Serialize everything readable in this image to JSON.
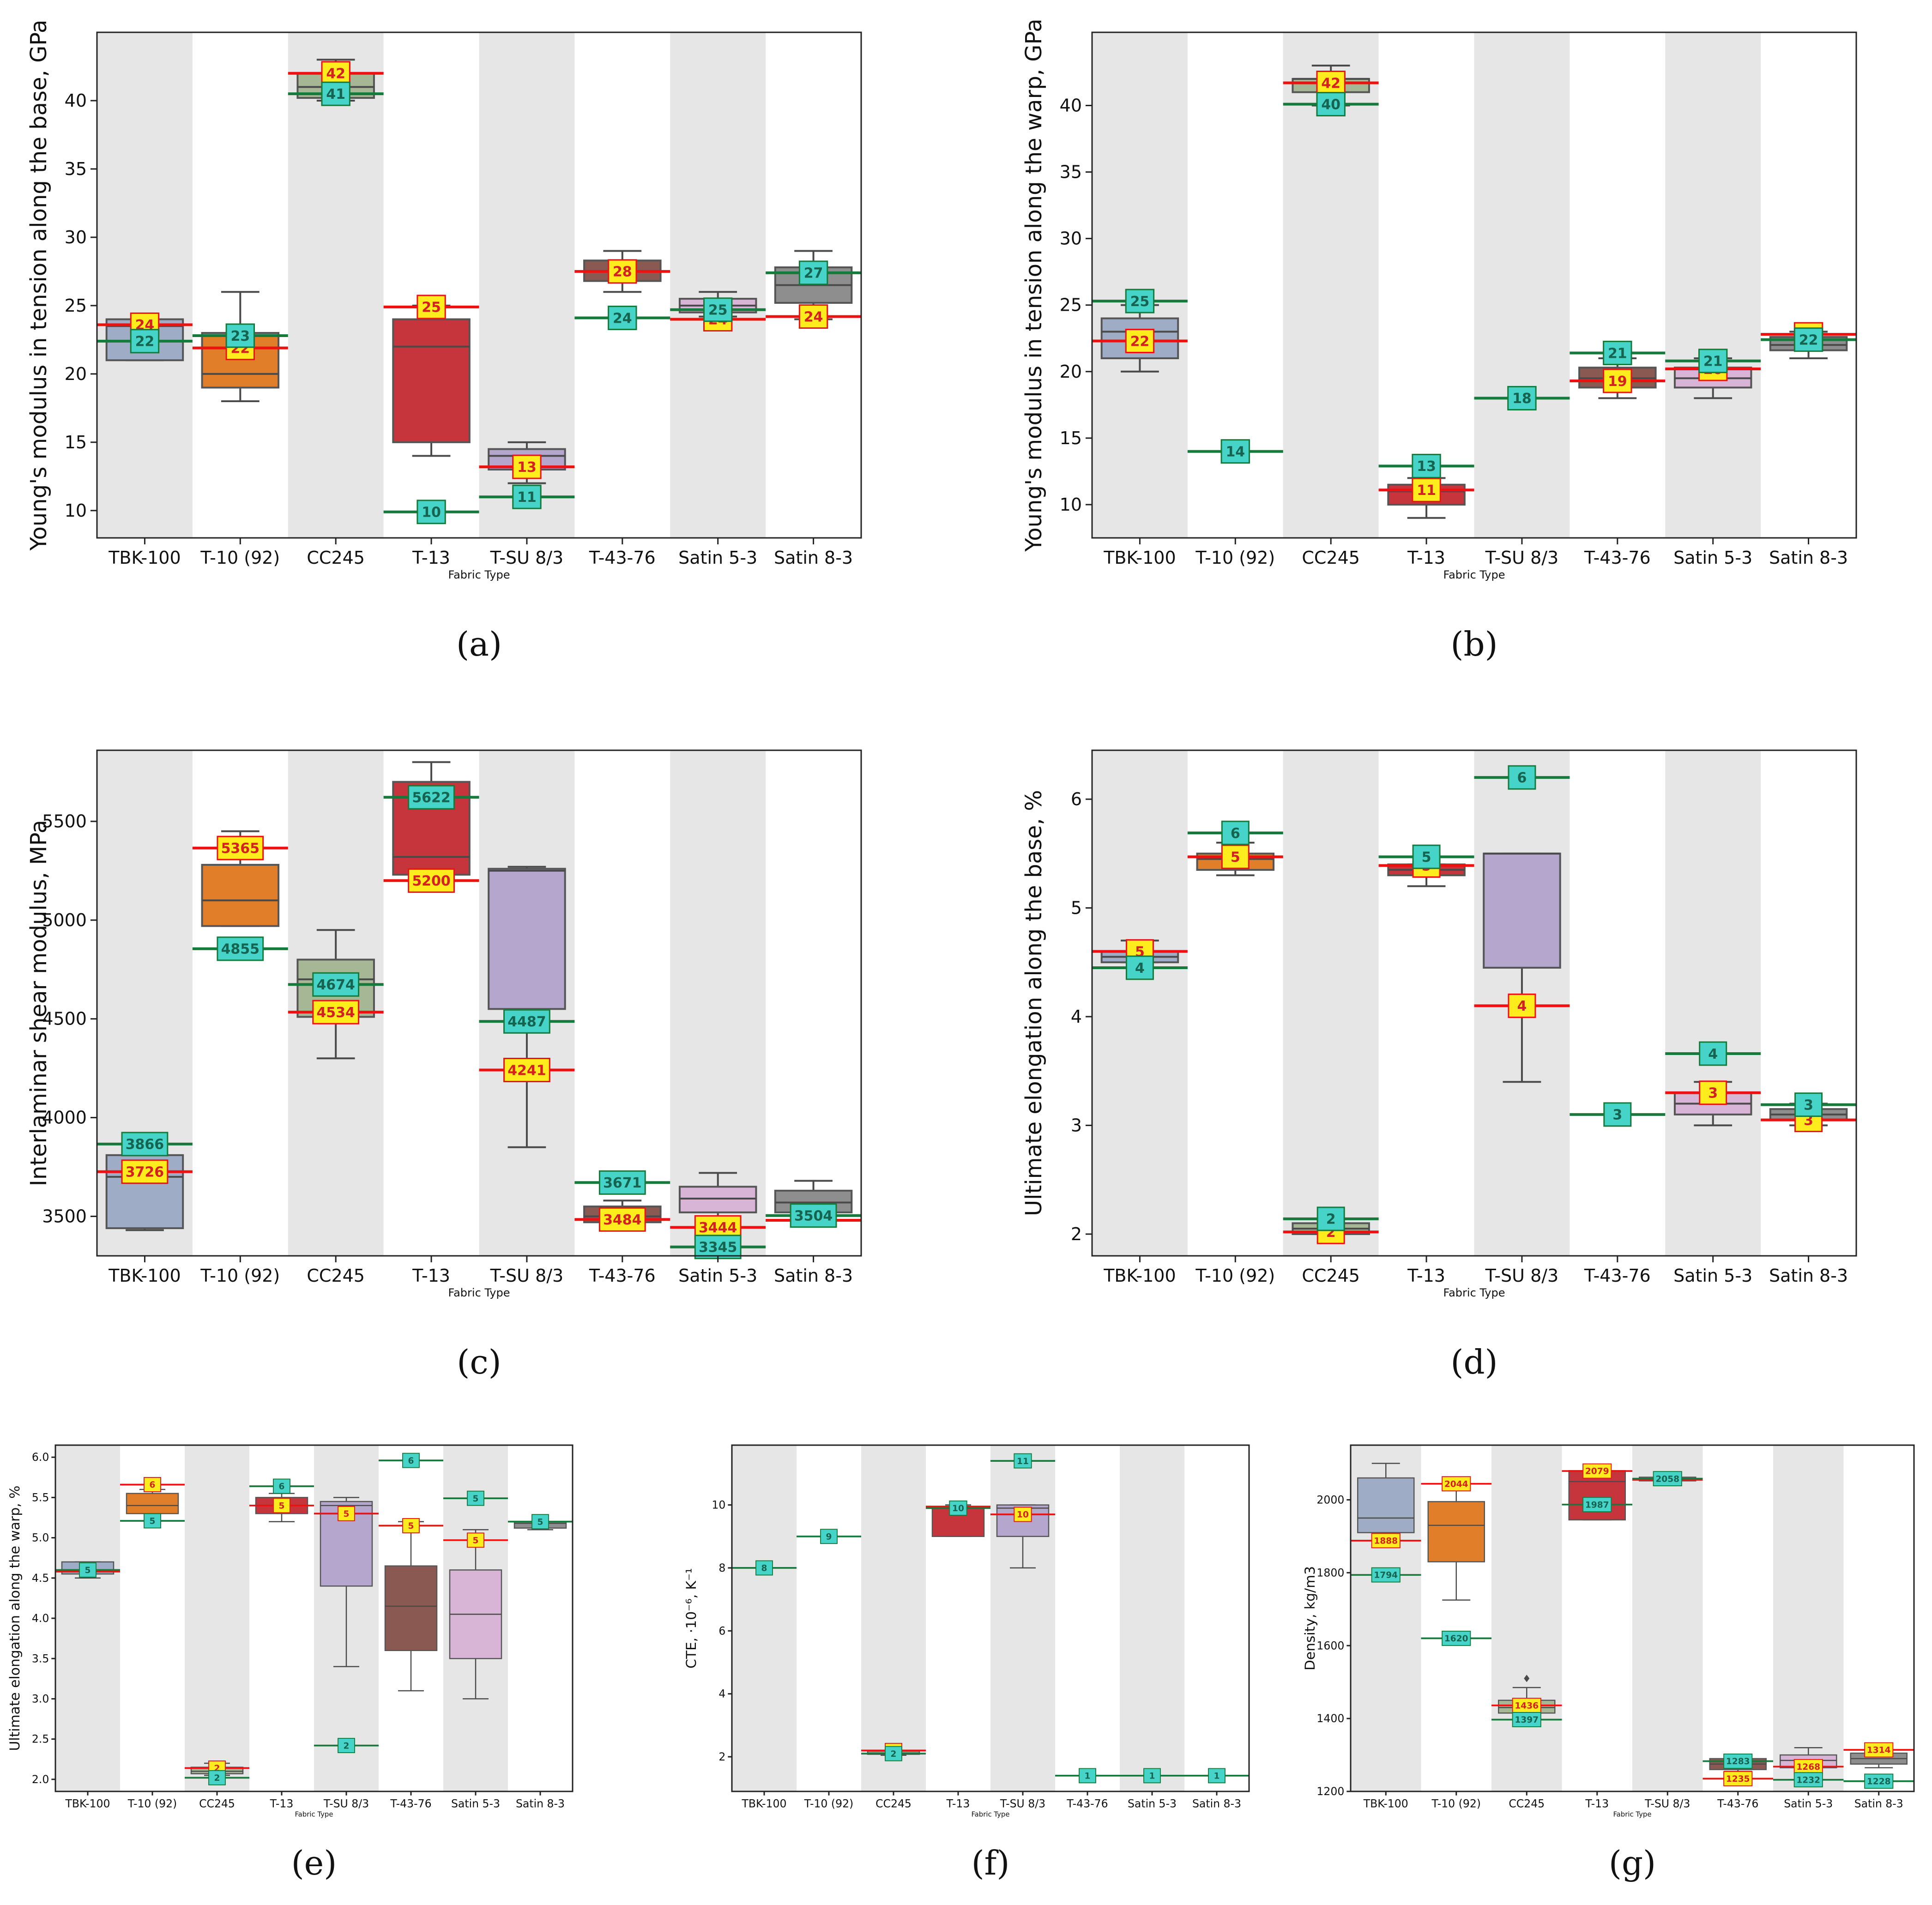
{
  "colors": {
    "band": "#e6e6e6",
    "red_line": "#ee1111",
    "green_line": "#157a3c",
    "yellow_label": "#ffec1c",
    "cyan_label": "#46d3c8",
    "TBK-100": "#9eacc6",
    "T-10 (92)": "#e07e2a",
    "CC245": "#a6b795",
    "T-13": "#c6343c",
    "T-SU 8/3": "#b4a6cd",
    "T-43-76": "#8a5a52",
    "Satin 5-3": "#d8b4d6",
    "Satin 8-3": "#8e8e8e"
  },
  "chart_data": [
    {
      "panel": "(a)",
      "type": "box",
      "categories": [
        "TBK-100",
        "T-10 (92)",
        "CC245",
        "T-13",
        "T-SU 8/3",
        "T-43-76",
        "Satin 5-3",
        "Satin 8-3"
      ],
      "ylabel": "Young's modulus in tension along the base, GPa",
      "xlabel": "Fabric Type",
      "ylim": [
        8,
        45
      ],
      "yticks": [
        10,
        15,
        20,
        25,
        30,
        35,
        40
      ],
      "ytick_labels": [
        "10",
        "15",
        "20",
        "25",
        "30",
        "35",
        "40"
      ],
      "boxes": [
        {
          "min": 21,
          "q1": 21,
          "med": 23.5,
          "q3": 24,
          "max": 24
        },
        {
          "min": 18,
          "q1": 19,
          "med": 20,
          "q3": 23,
          "max": 26
        },
        {
          "min": 40,
          "q1": 40.2,
          "med": 41,
          "q3": 42,
          "max": 43
        },
        {
          "min": 14,
          "q1": 15,
          "med": 22,
          "q3": 24,
          "max": 25
        },
        {
          "min": 12,
          "q1": 13,
          "med": 14,
          "q3": 14.5,
          "max": 15
        },
        {
          "min": 26,
          "q1": 26.8,
          "med": 27.5,
          "q3": 28.3,
          "max": 29
        },
        {
          "min": 24.2,
          "q1": 24.5,
          "med": 25,
          "q3": 25.5,
          "max": 26
        },
        {
          "min": 24,
          "q1": 25.2,
          "med": 26.5,
          "q3": 27.8,
          "max": 29
        }
      ],
      "red": {
        "values": [
          23.6,
          21.9,
          42,
          24.9,
          13.2,
          27.5,
          24,
          24.2
        ],
        "labels": [
          "24",
          "22",
          "42",
          "25",
          "13",
          "28",
          "24",
          "24"
        ]
      },
      "green": {
        "values": [
          22.4,
          22.8,
          40.5,
          9.9,
          11,
          24.1,
          24.7,
          27.4
        ],
        "labels": [
          "22",
          "23",
          "41",
          "10",
          "11",
          "24",
          "25",
          "27"
        ]
      }
    },
    {
      "panel": "(b)",
      "type": "box",
      "categories": [
        "TBK-100",
        "T-10 (92)",
        "CC245",
        "T-13",
        "T-SU 8/3",
        "T-43-76",
        "Satin 5-3",
        "Satin 8-3"
      ],
      "ylabel": "Young's modulus in tension along the warp, GPa",
      "xlabel": "Fabric Type",
      "ylim": [
        7.5,
        45.5
      ],
      "yticks": [
        10,
        15,
        20,
        25,
        30,
        35,
        40
      ],
      "ytick_labels": [
        "10",
        "15",
        "20",
        "25",
        "30",
        "35",
        "40"
      ],
      "boxes": [
        {
          "min": 20,
          "q1": 21,
          "med": 23,
          "q3": 24,
          "max": 25
        },
        null,
        {
          "min": 40,
          "q1": 41,
          "med": 42,
          "q3": 42,
          "max": 43
        },
        {
          "min": 9,
          "q1": 10,
          "med": 11,
          "q3": 11.5,
          "max": 12
        },
        null,
        {
          "min": 18,
          "q1": 18.8,
          "med": 19.5,
          "q3": 20.3,
          "max": 21
        },
        {
          "min": 18,
          "q1": 18.8,
          "med": 19.5,
          "q3": 20.3,
          "max": 21
        },
        {
          "min": 21,
          "q1": 21.6,
          "med": 22,
          "q3": 22.6,
          "max": 23
        }
      ],
      "red": {
        "values": [
          22.3,
          null,
          41.7,
          11.1,
          null,
          19.3,
          20.2,
          22.8
        ],
        "labels": [
          "22",
          "",
          "42",
          "11",
          "",
          "19",
          "20",
          "23"
        ]
      },
      "green": {
        "values": [
          25.3,
          14,
          40.1,
          12.9,
          18,
          21.4,
          20.8,
          22.4
        ],
        "labels": [
          "25",
          "14",
          "40",
          "13",
          "18",
          "21",
          "21",
          "22"
        ]
      }
    },
    {
      "panel": "(c)",
      "type": "box",
      "categories": [
        "TBK-100",
        "T-10 (92)",
        "CC245",
        "T-13",
        "T-SU 8/3",
        "T-43-76",
        "Satin 5-3",
        "Satin 8-3"
      ],
      "ylabel": "Interlaminar shear modulus, MPa",
      "xlabel": "Fabric Type",
      "ylim": [
        3300,
        5860
      ],
      "yticks": [
        3500,
        4000,
        4500,
        5000,
        5500
      ],
      "ytick_labels": [
        "3500",
        "4000",
        "4500",
        "5000",
        "5500"
      ],
      "boxes": [
        {
          "min": 3430,
          "q1": 3440,
          "med": 3700,
          "q3": 3810,
          "max": 3810
        },
        {
          "min": 4970,
          "q1": 4970,
          "med": 5100,
          "q3": 5280,
          "max": 5450
        },
        {
          "min": 4300,
          "q1": 4510,
          "med": 4700,
          "q3": 4800,
          "max": 4950
        },
        {
          "min": 5230,
          "q1": 5230,
          "med": 5320,
          "q3": 5700,
          "max": 5800
        },
        {
          "min": 3850,
          "q1": 4550,
          "med": 5250,
          "q3": 5260,
          "max": 5270
        },
        {
          "min": 3430,
          "q1": 3470,
          "med": 3500,
          "q3": 3550,
          "max": 3580
        },
        {
          "min": 3420,
          "q1": 3520,
          "med": 3590,
          "q3": 3650,
          "max": 3720
        },
        {
          "min": 3470,
          "q1": 3520,
          "med": 3570,
          "q3": 3630,
          "max": 3680
        }
      ],
      "red": {
        "values": [
          3726,
          5365,
          4534,
          5200,
          4241,
          3484,
          3444,
          3480
        ],
        "labels": [
          "3726",
          "5365",
          "4534",
          "5200",
          "4241",
          "3484",
          "3444",
          ""
        ]
      },
      "green": {
        "values": [
          3866,
          4855,
          4674,
          5622,
          4487,
          3671,
          3345,
          3504
        ],
        "labels": [
          "3866",
          "4855",
          "4674",
          "5622",
          "4487",
          "3671",
          "3345",
          "3504"
        ]
      }
    },
    {
      "panel": "(d)",
      "type": "box",
      "categories": [
        "TBK-100",
        "T-10 (92)",
        "CC245",
        "T-13",
        "T-SU 8/3",
        "T-43-76",
        "Satin 5-3",
        "Satin 8-3"
      ],
      "ylabel": "Ultimate elongation along the base, %",
      "xlabel": "Fabric Type",
      "ylim": [
        1.8,
        6.45
      ],
      "yticks": [
        2,
        3,
        4,
        5,
        6
      ],
      "ytick_labels": [
        "2",
        "3",
        "4",
        "5",
        "6"
      ],
      "boxes": [
        {
          "min": 4.5,
          "q1": 4.5,
          "med": 4.55,
          "q3": 4.6,
          "max": 4.7
        },
        {
          "min": 5.3,
          "q1": 5.35,
          "med": 5.45,
          "q3": 5.5,
          "max": 5.6
        },
        {
          "min": 2.0,
          "q1": 2.0,
          "med": 2.05,
          "q3": 2.1,
          "max": 2.1
        },
        {
          "min": 5.2,
          "q1": 5.3,
          "med": 5.35,
          "q3": 5.4,
          "max": 5.4
        },
        {
          "min": 3.4,
          "q1": 4.45,
          "med": 5.5,
          "q3": 5.5,
          "max": 5.5
        },
        null,
        {
          "min": 3.0,
          "q1": 3.1,
          "med": 3.2,
          "q3": 3.3,
          "max": 3.4
        },
        {
          "min": 3.0,
          "q1": 3.05,
          "med": 3.1,
          "q3": 3.15,
          "max": 3.2
        }
      ],
      "red": {
        "values": [
          4.6,
          5.47,
          2.02,
          5.39,
          4.1,
          null,
          3.3,
          3.05
        ],
        "labels": [
          "5",
          "5",
          "2",
          "5",
          "4",
          "",
          "3",
          "3"
        ]
      },
      "green": {
        "values": [
          4.45,
          5.69,
          2.14,
          5.47,
          6.2,
          3.1,
          3.66,
          3.19
        ],
        "labels": [
          "4",
          "6",
          "2",
          "5",
          "6",
          "3",
          "4",
          "3"
        ]
      }
    },
    {
      "panel": "(e)",
      "type": "box",
      "categories": [
        "TBK-100",
        "T-10 (92)",
        "CC245",
        "T-13",
        "T-SU 8/3",
        "T-43-76",
        "Satin 5-3",
        "Satin 8-3"
      ],
      "ylabel": "Ultimate elongation along the warp, %",
      "xlabel": "Fabric Type",
      "ylim": [
        1.85,
        6.15
      ],
      "yticks": [
        2.0,
        2.5,
        3.0,
        3.5,
        4.0,
        4.5,
        5.0,
        5.5,
        6.0
      ],
      "ytick_labels": [
        "2.0",
        "2.5",
        "3.0",
        "3.5",
        "4.0",
        "4.5",
        "5.0",
        "5.5",
        "6.0"
      ],
      "boxes": [
        {
          "min": 4.5,
          "q1": 4.55,
          "med": 4.6,
          "q3": 4.7,
          "max": 4.7
        },
        {
          "min": 5.3,
          "q1": 5.3,
          "med": 5.4,
          "q3": 5.55,
          "max": 5.6
        },
        {
          "min": 2.05,
          "q1": 2.07,
          "med": 2.1,
          "q3": 2.15,
          "max": 2.2
        },
        {
          "min": 5.2,
          "q1": 5.3,
          "med": 5.4,
          "q3": 5.5,
          "max": 5.55
        },
        {
          "min": 3.4,
          "q1": 4.4,
          "med": 5.4,
          "q3": 5.45,
          "max": 5.5
        },
        {
          "min": 3.1,
          "q1": 3.6,
          "med": 4.15,
          "q3": 4.65,
          "max": 5.2
        },
        {
          "min": 3.0,
          "q1": 3.5,
          "med": 4.05,
          "q3": 4.6,
          "max": 5.1
        },
        {
          "min": 5.1,
          "q1": 5.12,
          "med": 5.18,
          "q3": 5.2,
          "max": 5.2
        }
      ],
      "red": {
        "values": [
          4.58,
          5.66,
          2.14,
          5.4,
          5.3,
          5.15,
          4.97,
          5.2
        ],
        "labels": [
          "",
          "6",
          "2",
          "5",
          "5",
          "5",
          "5",
          ""
        ]
      },
      "green": {
        "values": [
          4.6,
          5.21,
          2.02,
          5.64,
          2.42,
          5.96,
          5.49,
          5.2
        ],
        "labels": [
          "5",
          "5",
          "2",
          "6",
          "2",
          "6",
          "5",
          "5"
        ]
      }
    },
    {
      "panel": "(f)",
      "type": "box",
      "categories": [
        "TBK-100",
        "T-10 (92)",
        "CC245",
        "T-13",
        "T-SU 8/3",
        "T-43-76",
        "Satin 5-3",
        "Satin 8-3"
      ],
      "ylabel": "CTE, ·10⁻⁶, K⁻¹",
      "xlabel": "Fabric Type",
      "ylim": [
        0.9,
        11.9
      ],
      "yticks": [
        2,
        4,
        6,
        8,
        10
      ],
      "ytick_labels": [
        "2",
        "4",
        "6",
        "8",
        "10"
      ],
      "boxes": [
        null,
        null,
        {
          "min": 2.05,
          "q1": 2.08,
          "med": 2.12,
          "q3": 2.18,
          "max": 2.2
        },
        {
          "min": 9.0,
          "q1": 9.0,
          "med": 9.9,
          "q3": 9.95,
          "max": 10
        },
        {
          "min": 8.0,
          "q1": 9.0,
          "med": 9.9,
          "q3": 10,
          "max": 10
        },
        null,
        null,
        null
      ],
      "red": {
        "values": [
          null,
          null,
          2.2,
          9.95,
          9.7,
          null,
          null,
          null
        ],
        "labels": [
          "",
          "",
          "2",
          "",
          "10",
          "",
          "",
          ""
        ]
      },
      "green": {
        "values": [
          8.0,
          9.0,
          2.1,
          9.9,
          11.4,
          1.4,
          1.4,
          1.4
        ],
        "labels": [
          "8",
          "9",
          "2",
          "10",
          "11",
          "1",
          "1",
          "1"
        ]
      }
    },
    {
      "panel": "(g)",
      "type": "box",
      "categories": [
        "TBK-100",
        "T-10 (92)",
        "CC245",
        "T-13",
        "T-SU 8/3",
        "T-43-76",
        "Satin 5-3",
        "Satin 8-3"
      ],
      "ylabel": "Density, kg/m3",
      "xlabel": "Fabric Type",
      "ylim": [
        1200,
        2150
      ],
      "yticks": [
        1200,
        1400,
        1600,
        1800,
        2000
      ],
      "ytick_labels": [
        "1200",
        "1400",
        "1600",
        "1800",
        "2000"
      ],
      "boxes": [
        {
          "min": 1900,
          "q1": 1910,
          "med": 1950,
          "q3": 2060,
          "max": 2100
        },
        {
          "min": 1725,
          "q1": 1830,
          "med": 1930,
          "q3": 1995,
          "max": 2060
        },
        {
          "min": 1400,
          "q1": 1415,
          "med": 1430,
          "q3": 1450,
          "max": 1485,
          "outlier": 1510
        },
        {
          "min": 1945,
          "q1": 1945,
          "med": 2050,
          "q3": 2080,
          "max": 2085
        },
        {
          "min": 2050,
          "q1": 2052,
          "med": 2058,
          "q3": 2062,
          "max": 2065
        },
        {
          "min": 1255,
          "q1": 1260,
          "med": 1275,
          "q3": 1290,
          "max": 1295
        },
        {
          "min": 1250,
          "q1": 1265,
          "med": 1285,
          "q3": 1300,
          "max": 1320
        },
        {
          "min": 1265,
          "q1": 1275,
          "med": 1290,
          "q3": 1305,
          "max": 1315
        }
      ],
      "red": {
        "values": [
          1888,
          2044,
          1436,
          2079,
          2055,
          1235,
          1268,
          1314
        ],
        "labels": [
          "1888",
          "2044",
          "1436",
          "2079",
          "",
          "1235",
          "1268",
          "1314"
        ]
      },
      "green": {
        "values": [
          1794,
          1620,
          1397,
          1987,
          2058,
          1283,
          1232,
          1228
        ],
        "labels": [
          "1794",
          "1620",
          "1397",
          "1987",
          "2058",
          "1283",
          "1232",
          "1228"
        ]
      }
    }
  ]
}
